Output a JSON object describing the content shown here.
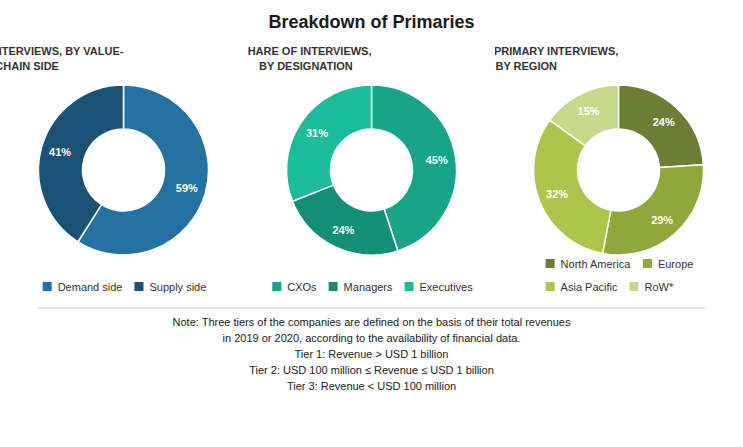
{
  "title": "Breakdown of Primaries",
  "annotations": [
    "Note: Three tiers of the companies are defined on the basis of their total revenues",
    "in 2019 or 2020, according to the availability of financial data.",
    "Tier 1: Revenue > USD 1 billion",
    "Tier 2: USD 100 million ≤ Revenue ≤ USD 1 billion",
    "Tier 3: Revenue < USD 100 million"
  ],
  "chart_data": [
    {
      "type": "pie",
      "title": "SHARE OF INTERVIEWS, BY VALUE-\nCHAIN SIDE",
      "categories": [
        "Demand side",
        "Supply side"
      ],
      "values": [
        59,
        41
      ],
      "value_labels": [
        "59%",
        "41%"
      ],
      "colors": [
        "#2471a3",
        "#1a5276"
      ],
      "data_labels": true,
      "legend": "bottom"
    },
    {
      "type": "pie",
      "title": "SHARE OF INTERVIEWS,\nBY DESIGNATION",
      "categories": [
        "CXOs",
        "Managers",
        "Executives"
      ],
      "values": [
        45,
        24,
        31
      ],
      "value_labels": [
        "45%",
        "24%",
        "31%"
      ],
      "colors": [
        "#17a589",
        "#148f77",
        "#1abc9c"
      ],
      "data_labels": true,
      "legend": "bottom"
    },
    {
      "type": "pie",
      "title": "SHARE OF PRIMARY INTERVIEWS,\nBY REGION",
      "categories": [
        "North America",
        "Europe",
        "Asia Pacific",
        "RoW*"
      ],
      "values": [
        24,
        29,
        32,
        15
      ],
      "value_labels": [
        "24%",
        "29%",
        "32%",
        "15%"
      ],
      "colors": [
        "#6d7d33",
        "#8fa83c",
        "#afc44a",
        "#c8d98a"
      ],
      "data_labels": true,
      "legend": "bottom"
    }
  ]
}
